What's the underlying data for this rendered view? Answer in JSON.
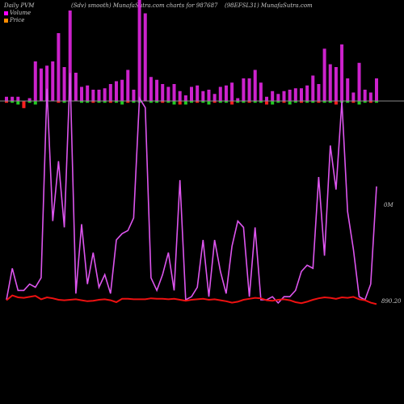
{
  "header": {
    "left": "Daily PVM",
    "center": "(Sdv) smooth) MunafaSutra.com charts for 987687",
    "right": "(98EFSL31) MunafaSutra.com"
  },
  "legend": {
    "volume_label": "Volume",
    "price_label": "Price",
    "volume_color": "#ff00ff",
    "price_color": "#ff8c00"
  },
  "side_labels": {
    "volume_max": "0M",
    "last_price": "890.20"
  },
  "colors": {
    "volume_bar": "#cc22cc",
    "up_bar": "#22cc22",
    "down_bar": "#ff2020",
    "volume_line": "#dd55ee",
    "price_line": "#ee1111",
    "axis_line": "#888888"
  },
  "chart_data": {
    "type": "bar+line",
    "volume_bars": [
      3,
      3,
      3,
      -4,
      2,
      28,
      23,
      25,
      28,
      48,
      24,
      64,
      20,
      10,
      11,
      8,
      8,
      9,
      12,
      14,
      15,
      22,
      8,
      74,
      62,
      17,
      15,
      12,
      10,
      12,
      7,
      4,
      10,
      11,
      7,
      8,
      5,
      10,
      11,
      13,
      2,
      16,
      16,
      22,
      13,
      3,
      7,
      5,
      7,
      8,
      9,
      9,
      11,
      18,
      12,
      37,
      26,
      24,
      40,
      16,
      6,
      27,
      8,
      6,
      16
    ],
    "change_bars": [
      -1,
      -1,
      -2,
      -4,
      -1,
      -2,
      0,
      0,
      0,
      -1,
      -1,
      0,
      0,
      -1,
      -1,
      -1,
      -1,
      -1,
      -1,
      -1,
      -2,
      -1,
      -1,
      -1,
      0,
      -1,
      -1,
      -1,
      -1,
      -2,
      -2,
      -2,
      -1,
      -1,
      -1,
      -2,
      -1,
      -1,
      -1,
      -2,
      -1,
      -1,
      -1,
      -1,
      -1,
      -2,
      -2,
      -1,
      -1,
      -2,
      -1,
      -1,
      -1,
      -1,
      -1,
      -1,
      -1,
      -2,
      -1,
      -1,
      -1,
      -2,
      -1,
      -1,
      -1
    ],
    "volume_line": [
      0.1,
      1.1,
      0.4,
      0.4,
      0.6,
      0.5,
      0.8,
      6.8,
      2.6,
      4.5,
      2.4,
      7.3,
      0.3,
      2.5,
      0.6,
      1.6,
      0.5,
      0.9,
      0.3,
      2.0,
      2.2,
      2.3,
      2.7,
      6.5,
      6.2,
      0.8,
      0.4,
      0.9,
      1.6,
      0.4,
      3.9,
      0.1,
      0.2,
      0.5,
      2.0,
      0.2,
      2.0,
      1.0,
      0.3,
      1.8,
      2.6,
      2.4,
      0.2,
      2.4,
      0.1,
      0.1,
      0.2,
      0.0,
      0.2,
      0.2,
      0.4,
      1.0,
      1.2,
      1.1,
      4.0,
      1.5,
      5.0,
      3.6,
      6.4,
      2.9,
      1.7,
      0.2,
      0.1,
      0.6,
      3.7
    ],
    "price_line": [
      891.0,
      892.0,
      891.6,
      891.5,
      891.7,
      891.9,
      891.2,
      891.6,
      891.4,
      891.1,
      891.0,
      891.1,
      891.2,
      891.0,
      890.8,
      890.9,
      891.1,
      891.2,
      891.0,
      890.6,
      891.3,
      891.3,
      891.2,
      891.2,
      891.2,
      891.4,
      891.3,
      891.3,
      891.2,
      891.3,
      891.1,
      890.9,
      891.1,
      891.2,
      891.3,
      891.1,
      891.2,
      891.0,
      890.8,
      890.5,
      890.7,
      891.1,
      891.3,
      891.5,
      891.4,
      891.0,
      890.9,
      891.1,
      891.2,
      891.0,
      890.6,
      890.4,
      890.7,
      891.1,
      891.4,
      891.6,
      891.5,
      891.3,
      891.6,
      891.5,
      891.7,
      891.2,
      891.0,
      890.5,
      890.2
    ]
  }
}
